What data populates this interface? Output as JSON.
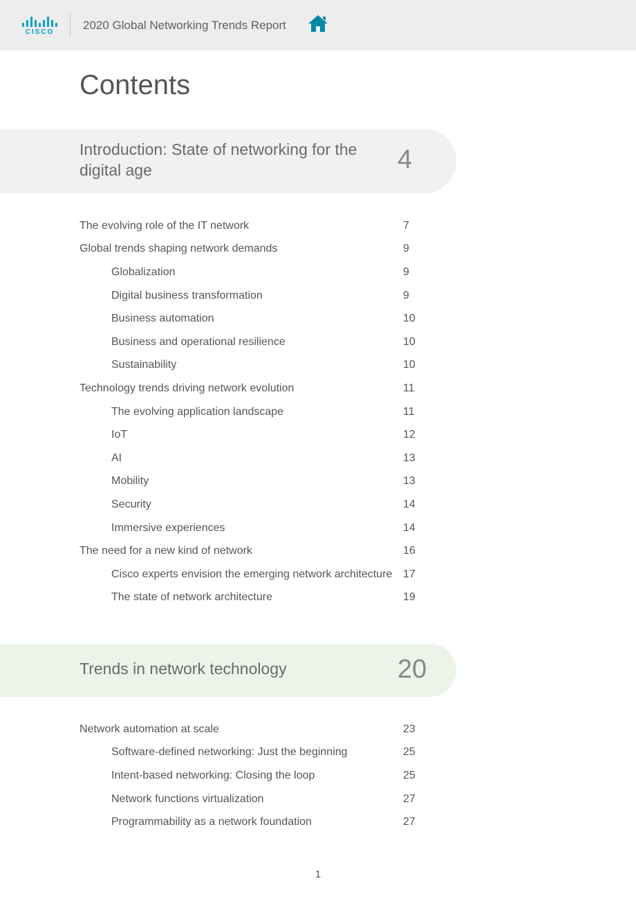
{
  "header": {
    "logo_text": "CISCO",
    "title": "2020 Global Networking Trends Report"
  },
  "contents_title": "Contents",
  "sections": [
    {
      "band_title": "Introduction: State of networking for the digital age",
      "band_page": "4",
      "band_class": "section-band-gray",
      "rows": [
        {
          "label": "The evolving role of the IT network",
          "page": "7",
          "indent": 0
        },
        {
          "label": "Global trends shaping network demands",
          "page": "9",
          "indent": 0
        },
        {
          "label": "Globalization",
          "page": "9",
          "indent": 1
        },
        {
          "label": "Digital business transformation",
          "page": "9",
          "indent": 1
        },
        {
          "label": "Business automation",
          "page": "10",
          "indent": 1
        },
        {
          "label": "Business and operational resilience",
          "page": "10",
          "indent": 1
        },
        {
          "label": "Sustainability",
          "page": "10",
          "indent": 1
        },
        {
          "label": "Technology trends driving network evolution",
          "page": "11",
          "indent": 0
        },
        {
          "label": "The evolving application landscape",
          "page": "11",
          "indent": 1
        },
        {
          "label": "IoT",
          "page": "12",
          "indent": 1
        },
        {
          "label": "AI",
          "page": "13",
          "indent": 1
        },
        {
          "label": "Mobility",
          "page": "13",
          "indent": 1
        },
        {
          "label": "Security",
          "page": "14",
          "indent": 1
        },
        {
          "label": "Immersive experiences",
          "page": "14",
          "indent": 1
        },
        {
          "label": "The need for a new kind of network",
          "page": "16",
          "indent": 0
        },
        {
          "label": "Cisco experts envision the emerging network architecture",
          "page": "17",
          "indent": 1,
          "wrap": true
        },
        {
          "label": "The state of network architecture",
          "page": "19",
          "indent": 1
        }
      ]
    },
    {
      "band_title": "Trends in network technology",
      "band_page": "20",
      "band_class": "section-band-green",
      "rows": [
        {
          "label": "Network automation at scale",
          "page": "23",
          "indent": 0
        },
        {
          "label": "Software-defined networking: Just the beginning",
          "page": "25",
          "indent": 1
        },
        {
          "label": "Intent-based networking: Closing the loop",
          "page": "25",
          "indent": 1
        },
        {
          "label": "Network functions virtualization",
          "page": "27",
          "indent": 1
        },
        {
          "label": "Programmability as a network foundation",
          "page": "27",
          "indent": 1
        }
      ]
    }
  ],
  "page_number": "1",
  "colors": {
    "cisco_brand": "#00a3c4",
    "header_bg": "#ededed",
    "band_gray": "#f1f1f1",
    "band_green": "#ecf4ea",
    "text_primary": "#555",
    "text_header": "#606060"
  }
}
